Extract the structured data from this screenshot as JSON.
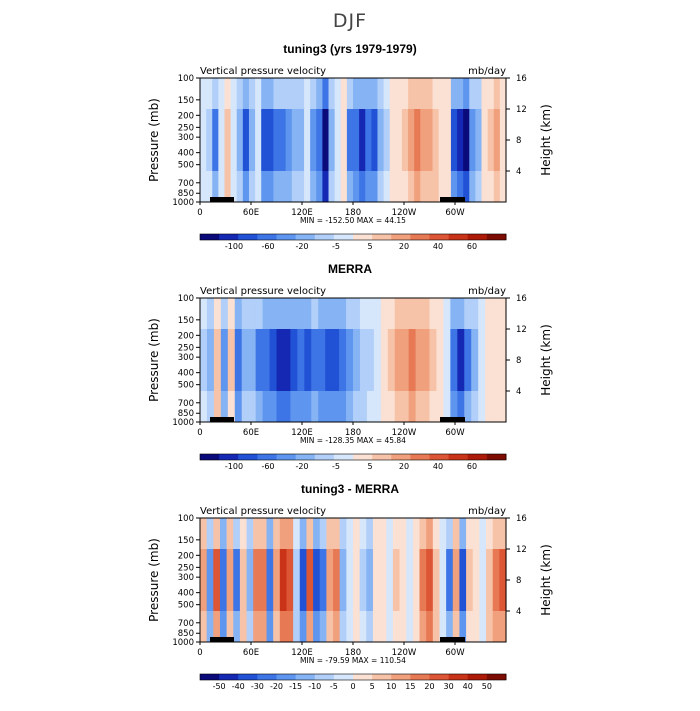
{
  "figure_title": "DJF",
  "chart_data": [
    {
      "type": "heatmap",
      "title": "tuning3 (yrs 1979-1979)",
      "variable": "Vertical pressure velocity",
      "units": "mb/day",
      "ylabel": "Pressure (mb)",
      "ylabel_right": "Height (km)",
      "x_ticks": [
        "0",
        "60E",
        "120E",
        "180",
        "120W",
        "60W"
      ],
      "y_ticks": [
        "100",
        "150",
        "200",
        "250",
        "300",
        "400",
        "500",
        "700",
        "850",
        "1000"
      ],
      "y_ticks_right": [
        "16",
        "12",
        "8",
        "4"
      ],
      "min_label": "MIN = -152.50",
      "max_label": "MAX =  44.15",
      "colorbar_labels": [
        "-100",
        "-60",
        "-20",
        "-5",
        "5",
        "20",
        "40",
        "60"
      ],
      "colors": [
        "#0a0a7a",
        "#1428b4",
        "#2152d6",
        "#3d75e6",
        "#5e95ee",
        "#86b3f3",
        "#b1cff8",
        "#d6e6fb",
        "#fbe1d3",
        "#f7c3a8",
        "#f0a07c",
        "#e77a55",
        "#dc5534",
        "#c93318",
        "#ad1a08",
        "#7d0c03"
      ],
      "columns": [
        -2,
        -3,
        -9,
        -1,
        4,
        -1,
        -5,
        -12,
        -6,
        -1,
        -12,
        -11,
        -9,
        -9,
        -7,
        -6,
        -5,
        -1,
        -8,
        -10,
        -20,
        -6,
        -1,
        0,
        -9,
        -10,
        -13,
        -10,
        -12,
        -6,
        -3,
        2,
        2,
        3,
        6,
        7,
        6,
        5,
        4,
        2,
        2,
        -11,
        -14,
        -16,
        -8,
        -6,
        1,
        3,
        5,
        2
      ]
    },
    {
      "type": "heatmap",
      "title": "MERRA",
      "variable": "Vertical pressure velocity",
      "units": "mb/day",
      "ylabel": "Pressure (mb)",
      "ylabel_right": "Height (km)",
      "x_ticks": [
        "0",
        "60E",
        "120E",
        "180",
        "120W",
        "60W"
      ],
      "y_ticks": [
        "100",
        "150",
        "200",
        "250",
        "300",
        "400",
        "500",
        "700",
        "850",
        "1000"
      ],
      "y_ticks_right": [
        "16",
        "12",
        "8",
        "4"
      ],
      "min_label": "MIN = -128.35",
      "max_label": "MAX =  45.84",
      "colorbar_labels": [
        "-100",
        "-60",
        "-20",
        "-5",
        "5",
        "20",
        "40",
        "60"
      ],
      "colors": [
        "#0a0a7a",
        "#1428b4",
        "#2152d6",
        "#3d75e6",
        "#5e95ee",
        "#86b3f3",
        "#b1cff8",
        "#d6e6fb",
        "#fbe1d3",
        "#f7c3a8",
        "#f0a07c",
        "#e77a55",
        "#dc5534",
        "#c93318",
        "#ad1a08",
        "#7d0c03"
      ],
      "columns": [
        -3,
        -5,
        4,
        -8,
        3,
        -10,
        -5,
        -6,
        -9,
        -10,
        -12,
        -14,
        -13,
        -12,
        -10,
        -11,
        -9,
        -10,
        -11,
        -12,
        -10,
        -8,
        -6,
        -4,
        -3,
        -1,
        1,
        3,
        5,
        6,
        7,
        6,
        5,
        3,
        1,
        -2,
        -10,
        -14,
        -9,
        -5,
        -2,
        1,
        2,
        1
      ]
    },
    {
      "type": "heatmap",
      "title": "tuning3 - MERRA",
      "variable": "Vertical pressure velocity",
      "units": "mb/day",
      "ylabel": "Pressure (mb)",
      "ylabel_right": "Height (km)",
      "x_ticks": [
        "0",
        "60E",
        "120E",
        "180",
        "120W",
        "60W"
      ],
      "y_ticks": [
        "100",
        "150",
        "200",
        "250",
        "300",
        "400",
        "500",
        "700",
        "850",
        "1000"
      ],
      "y_ticks_right": [
        "16",
        "12",
        "8",
        "4"
      ],
      "min_label": "MIN = -79.59",
      "max_label": "MAX = 110.54",
      "colorbar_labels": [
        "-50",
        "-40",
        "-30",
        "-20",
        "-15",
        "-10",
        "-5",
        "0",
        "5",
        "10",
        "15",
        "20",
        "30",
        "40",
        "50"
      ],
      "colors": [
        "#0a0a7a",
        "#1428b4",
        "#2152d6",
        "#3d75e6",
        "#5e95ee",
        "#86b3f3",
        "#b1cff8",
        "#d6e6fb",
        "#fbe1d3",
        "#f7c3a8",
        "#f0a07c",
        "#e77a55",
        "#dc5534",
        "#c93318",
        "#ad1a08",
        "#7d0c03"
      ],
      "columns": [
        6,
        -8,
        9,
        -10,
        6,
        -9,
        4,
        -6,
        7,
        8,
        -10,
        5,
        12,
        10,
        -4,
        -12,
        9,
        -11,
        -9,
        5,
        8,
        -6,
        -1,
        2,
        -3,
        -5,
        1,
        2,
        -2,
        3,
        1,
        -1,
        2,
        8,
        10,
        4,
        -2,
        -9,
        6,
        -11,
        3,
        1,
        -2,
        4,
        7,
        9
      ]
    }
  ]
}
